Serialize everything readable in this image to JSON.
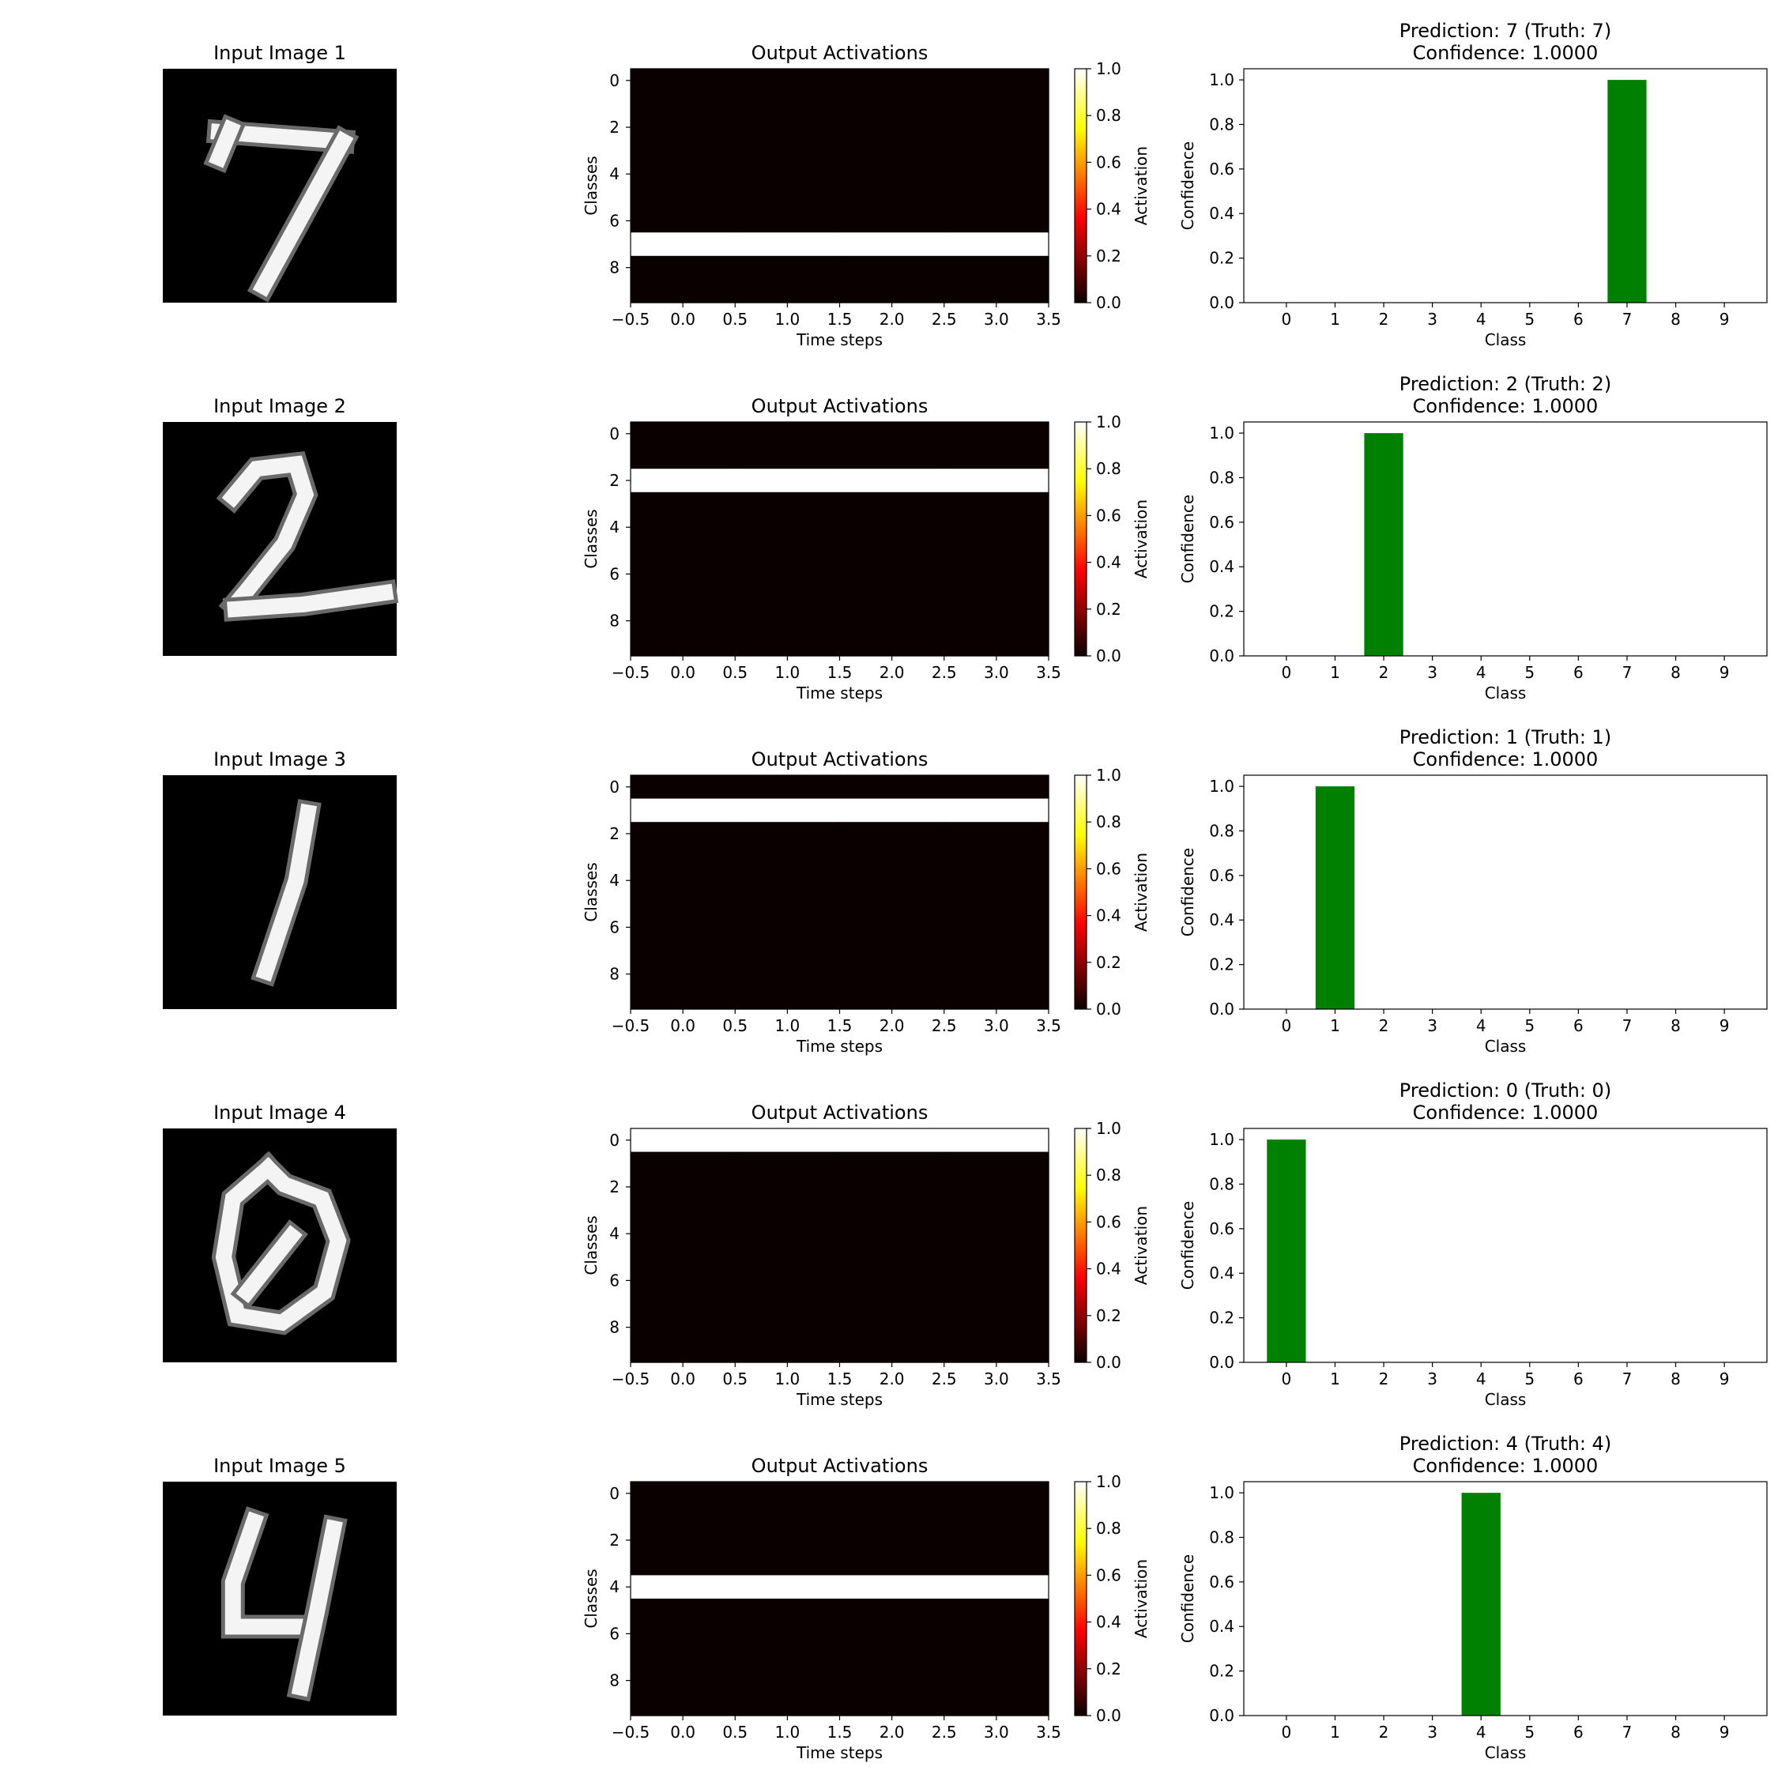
{
  "chart_data": [
    {
      "row": 1,
      "image_panel": {
        "type": "image",
        "title": "Input Image 1",
        "digit": "7"
      },
      "heatmap_panel": {
        "type": "heatmap",
        "title": "Output Activations",
        "xlabel": "Time steps",
        "ylabel": "Classes",
        "x_ticks": [
          "−0.5",
          "0.0",
          "0.5",
          "1.0",
          "1.5",
          "2.0",
          "2.5",
          "3.0",
          "3.5"
        ],
        "y_ticks": [
          "0",
          "2",
          "4",
          "6",
          "8"
        ],
        "xlim": [
          -0.5,
          3.5
        ],
        "ylim": [
          9.5,
          -0.5
        ],
        "time_steps": 4,
        "classes": 10,
        "active_class": 7,
        "active_value": 1.0,
        "inactive_value": 0.0,
        "colorbar": {
          "label": "Activation",
          "ticks": [
            "0.0",
            "0.2",
            "0.4",
            "0.6",
            "0.8",
            "1.0"
          ],
          "range": [
            0,
            1
          ],
          "colormap": "hot"
        }
      },
      "bar_panel": {
        "type": "bar",
        "title_line1": "Prediction: 7 (Truth: 7)",
        "title_line2": "Confidence: 1.0000",
        "xlabel": "Class",
        "ylabel": "Confidence",
        "categories": [
          "0",
          "1",
          "2",
          "3",
          "4",
          "5",
          "6",
          "7",
          "8",
          "9"
        ],
        "values": [
          0,
          0,
          0,
          0,
          0,
          0,
          0,
          1.0,
          0,
          0
        ],
        "y_ticks": [
          "0.0",
          "0.2",
          "0.4",
          "0.6",
          "0.8",
          "1.0"
        ],
        "ylim": [
          0,
          1.05
        ],
        "bar_color": "#008000"
      }
    },
    {
      "row": 2,
      "image_panel": {
        "type": "image",
        "title": "Input Image 2",
        "digit": "2"
      },
      "heatmap_panel": {
        "type": "heatmap",
        "title": "Output Activations",
        "xlabel": "Time steps",
        "ylabel": "Classes",
        "x_ticks": [
          "−0.5",
          "0.0",
          "0.5",
          "1.0",
          "1.5",
          "2.0",
          "2.5",
          "3.0",
          "3.5"
        ],
        "y_ticks": [
          "0",
          "2",
          "4",
          "6",
          "8"
        ],
        "xlim": [
          -0.5,
          3.5
        ],
        "ylim": [
          9.5,
          -0.5
        ],
        "time_steps": 4,
        "classes": 10,
        "active_class": 2,
        "active_value": 1.0,
        "inactive_value": 0.0,
        "colorbar": {
          "label": "Activation",
          "ticks": [
            "0.0",
            "0.2",
            "0.4",
            "0.6",
            "0.8",
            "1.0"
          ],
          "range": [
            0,
            1
          ],
          "colormap": "hot"
        }
      },
      "bar_panel": {
        "type": "bar",
        "title_line1": "Prediction: 2 (Truth: 2)",
        "title_line2": "Confidence: 1.0000",
        "xlabel": "Class",
        "ylabel": "Confidence",
        "categories": [
          "0",
          "1",
          "2",
          "3",
          "4",
          "5",
          "6",
          "7",
          "8",
          "9"
        ],
        "values": [
          0,
          0,
          1.0,
          0,
          0,
          0,
          0,
          0,
          0,
          0
        ],
        "y_ticks": [
          "0.0",
          "0.2",
          "0.4",
          "0.6",
          "0.8",
          "1.0"
        ],
        "ylim": [
          0,
          1.05
        ],
        "bar_color": "#008000"
      }
    },
    {
      "row": 3,
      "image_panel": {
        "type": "image",
        "title": "Input Image 3",
        "digit": "1"
      },
      "heatmap_panel": {
        "type": "heatmap",
        "title": "Output Activations",
        "xlabel": "Time steps",
        "ylabel": "Classes",
        "x_ticks": [
          "−0.5",
          "0.0",
          "0.5",
          "1.0",
          "1.5",
          "2.0",
          "2.5",
          "3.0",
          "3.5"
        ],
        "y_ticks": [
          "0",
          "2",
          "4",
          "6",
          "8"
        ],
        "xlim": [
          -0.5,
          3.5
        ],
        "ylim": [
          9.5,
          -0.5
        ],
        "time_steps": 4,
        "classes": 10,
        "active_class": 1,
        "active_value": 1.0,
        "inactive_value": 0.0,
        "colorbar": {
          "label": "Activation",
          "ticks": [
            "0.0",
            "0.2",
            "0.4",
            "0.6",
            "0.8",
            "1.0"
          ],
          "range": [
            0,
            1
          ],
          "colormap": "hot"
        }
      },
      "bar_panel": {
        "type": "bar",
        "title_line1": "Prediction: 1 (Truth: 1)",
        "title_line2": "Confidence: 1.0000",
        "xlabel": "Class",
        "ylabel": "Confidence",
        "categories": [
          "0",
          "1",
          "2",
          "3",
          "4",
          "5",
          "6",
          "7",
          "8",
          "9"
        ],
        "values": [
          0,
          1.0,
          0,
          0,
          0,
          0,
          0,
          0,
          0,
          0
        ],
        "y_ticks": [
          "0.0",
          "0.2",
          "0.4",
          "0.6",
          "0.8",
          "1.0"
        ],
        "ylim": [
          0,
          1.05
        ],
        "bar_color": "#008000"
      }
    },
    {
      "row": 4,
      "image_panel": {
        "type": "image",
        "title": "Input Image 4",
        "digit": "0"
      },
      "heatmap_panel": {
        "type": "heatmap",
        "title": "Output Activations",
        "xlabel": "Time steps",
        "ylabel": "Classes",
        "x_ticks": [
          "−0.5",
          "0.0",
          "0.5",
          "1.0",
          "1.5",
          "2.0",
          "2.5",
          "3.0",
          "3.5"
        ],
        "y_ticks": [
          "0",
          "2",
          "4",
          "6",
          "8"
        ],
        "xlim": [
          -0.5,
          3.5
        ],
        "ylim": [
          9.5,
          -0.5
        ],
        "time_steps": 4,
        "classes": 10,
        "active_class": 0,
        "active_value": 1.0,
        "inactive_value": 0.0,
        "colorbar": {
          "label": "Activation",
          "ticks": [
            "0.0",
            "0.2",
            "0.4",
            "0.6",
            "0.8",
            "1.0"
          ],
          "range": [
            0,
            1
          ],
          "colormap": "hot"
        }
      },
      "bar_panel": {
        "type": "bar",
        "title_line1": "Prediction: 0 (Truth: 0)",
        "title_line2": "Confidence: 1.0000",
        "xlabel": "Class",
        "ylabel": "Confidence",
        "categories": [
          "0",
          "1",
          "2",
          "3",
          "4",
          "5",
          "6",
          "7",
          "8",
          "9"
        ],
        "values": [
          1.0,
          0,
          0,
          0,
          0,
          0,
          0,
          0,
          0,
          0
        ],
        "y_ticks": [
          "0.0",
          "0.2",
          "0.4",
          "0.6",
          "0.8",
          "1.0"
        ],
        "ylim": [
          0,
          1.05
        ],
        "bar_color": "#008000"
      }
    },
    {
      "row": 5,
      "image_panel": {
        "type": "image",
        "title": "Input Image 5",
        "digit": "4"
      },
      "heatmap_panel": {
        "type": "heatmap",
        "title": "Output Activations",
        "xlabel": "Time steps",
        "ylabel": "Classes",
        "x_ticks": [
          "−0.5",
          "0.0",
          "0.5",
          "1.0",
          "1.5",
          "2.0",
          "2.5",
          "3.0",
          "3.5"
        ],
        "y_ticks": [
          "0",
          "2",
          "4",
          "6",
          "8"
        ],
        "xlim": [
          -0.5,
          3.5
        ],
        "ylim": [
          9.5,
          -0.5
        ],
        "time_steps": 4,
        "classes": 10,
        "active_class": 4,
        "active_value": 1.0,
        "inactive_value": 0.0,
        "colorbar": {
          "label": "Activation",
          "ticks": [
            "0.0",
            "0.2",
            "0.4",
            "0.6",
            "0.8",
            "1.0"
          ],
          "range": [
            0,
            1
          ],
          "colormap": "hot"
        }
      },
      "bar_panel": {
        "type": "bar",
        "title_line1": "Prediction: 4 (Truth: 4)",
        "title_line2": "Confidence: 1.0000",
        "xlabel": "Class",
        "ylabel": "Confidence",
        "categories": [
          "0",
          "1",
          "2",
          "3",
          "4",
          "5",
          "6",
          "7",
          "8",
          "9"
        ],
        "values": [
          0,
          0,
          0,
          0,
          1.0,
          0,
          0,
          0,
          0,
          0
        ],
        "y_ticks": [
          "0.0",
          "0.2",
          "0.4",
          "0.6",
          "0.8",
          "1.0"
        ],
        "ylim": [
          0,
          1.05
        ],
        "bar_color": "#008000"
      }
    }
  ]
}
